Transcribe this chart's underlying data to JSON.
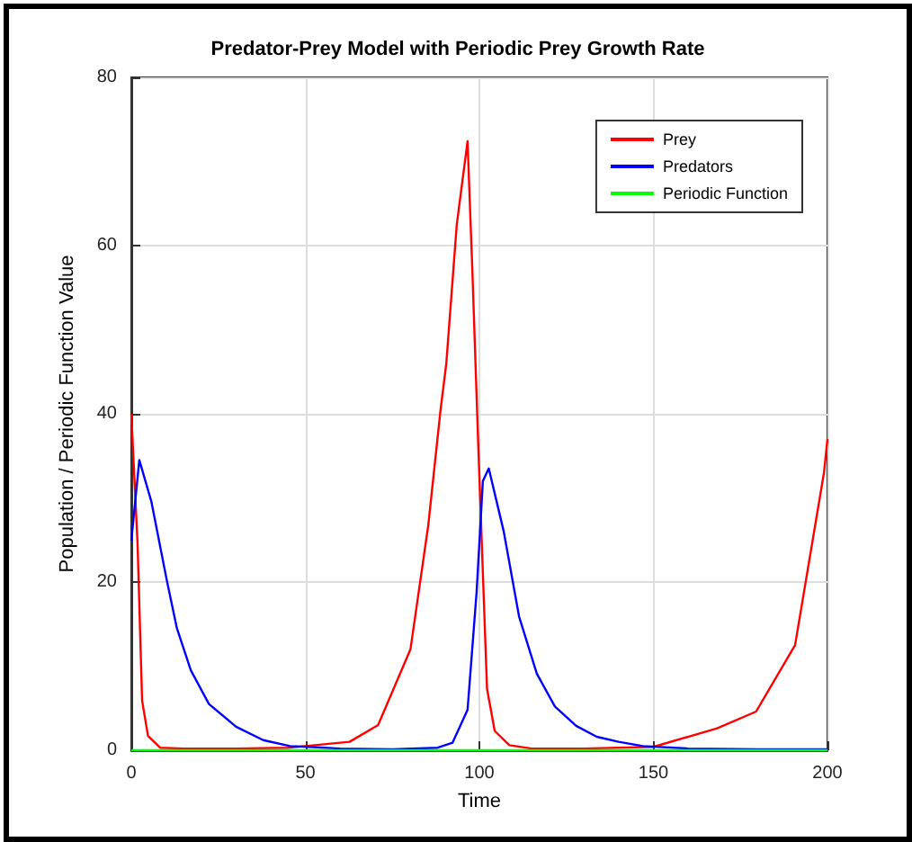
{
  "chart_data": {
    "type": "line",
    "title": "Predator-Prey Model with Periodic Prey Growth Rate",
    "xlabel": "Time",
    "ylabel": "Population / Periodic Function Value",
    "xlim": [
      0,
      200
    ],
    "ylim": [
      0,
      80
    ],
    "xticks": [
      0,
      50,
      100,
      150,
      200
    ],
    "yticks": [
      0,
      20,
      40,
      60,
      80
    ],
    "grid": true,
    "legend": "top right",
    "marker": "none",
    "line_style": "solid",
    "series": [
      {
        "name": "Prey",
        "color": "#ff0000",
        "x": [
          0,
          1.8,
          3.1,
          4.8,
          8.3,
          15,
          30,
          45,
          50,
          62.7,
          70.9,
          80.2,
          85.3,
          88.8,
          90.5,
          93.5,
          96.6,
          98,
          99.7,
          102.2,
          104.4,
          108.6,
          115,
          130,
          150,
          168.3,
          179.5,
          190.7,
          199,
          200
        ],
        "values": [
          40,
          24.5,
          5.9,
          1.7,
          0.3,
          0.2,
          0.2,
          0.3,
          0.5,
          1.0,
          3.0,
          12,
          26.7,
          40.3,
          46,
          62.5,
          72.4,
          56.8,
          36,
          7.3,
          2.3,
          0.6,
          0.2,
          0.2,
          0.4,
          2.6,
          4.6,
          12.5,
          33,
          37
        ]
      },
      {
        "name": "Predators",
        "color": "#0000ff",
        "x": [
          0,
          2.3,
          5.8,
          10.2,
          13.1,
          17.1,
          22.3,
          30.1,
          37.9,
          45.6,
          50.8,
          60,
          75,
          88,
          92.3,
          96.6,
          99.2,
          101,
          102.7,
          107,
          111.4,
          116.5,
          121.7,
          127.8,
          133.7,
          140,
          147,
          160,
          180,
          200
        ],
        "values": [
          24.9,
          34.5,
          29.5,
          20.2,
          14.5,
          9.5,
          5.5,
          2.8,
          1.2,
          0.5,
          0.4,
          0.2,
          0.1,
          0.3,
          0.9,
          4.8,
          18.8,
          32,
          33.5,
          26,
          15.9,
          9.1,
          5.2,
          2.9,
          1.6,
          1.0,
          0.5,
          0.2,
          0.1,
          0.1
        ]
      },
      {
        "name": "Periodic Function",
        "color": "#00ff00",
        "x": [
          0,
          50,
          100,
          150,
          200
        ],
        "values": [
          0,
          0,
          0,
          0,
          0
        ]
      }
    ]
  }
}
